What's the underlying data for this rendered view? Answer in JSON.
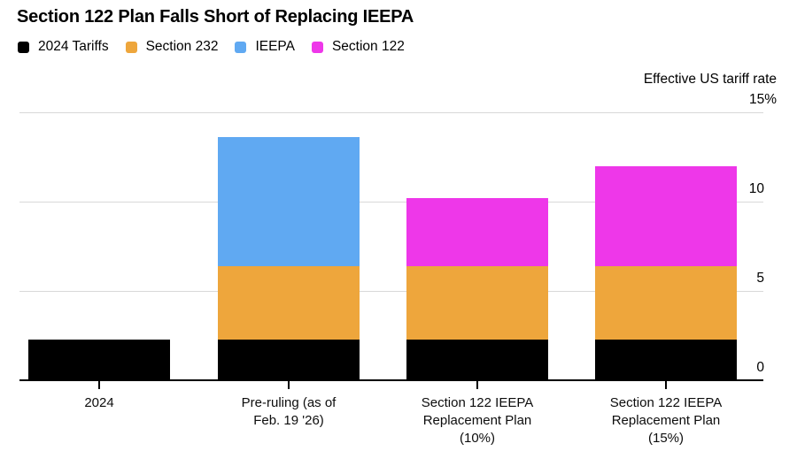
{
  "title": "Section 122 Plan Falls Short of Replacing IEEPA",
  "axis_title": "Effective US tariff rate",
  "legend": [
    {
      "label": "2024 Tariffs",
      "color": "#000000",
      "icon": "black-square-swatch-icon"
    },
    {
      "label": "Section 232",
      "color": "#EEA63C",
      "icon": "orange-square-swatch-icon"
    },
    {
      "label": "IEEPA",
      "color": "#60A9F2",
      "icon": "blue-square-swatch-icon"
    },
    {
      "label": "Section 122",
      "color": "#EE37E9",
      "icon": "magenta-square-swatch-icon"
    }
  ],
  "chart_data": {
    "type": "bar",
    "stacked": true,
    "title": "Section 122 Plan Falls Short of Replacing IEEPA",
    "ylabel": "Effective US tariff rate",
    "xlabel": "",
    "ylim": [
      0,
      15
    ],
    "yticks": [
      {
        "value": 0,
        "label": "0"
      },
      {
        "value": 5,
        "label": "5"
      },
      {
        "value": 10,
        "label": "10"
      },
      {
        "value": 15,
        "label": "15%"
      }
    ],
    "grid": "horizontal",
    "legend_position": "top-left",
    "categories": [
      "2024",
      "Pre-ruling (as of\nFeb. 19 '26)",
      "Section 122 IEEPA\nReplacement Plan\n(10%)",
      "Section 122 IEEPA\nReplacement Plan\n(15%)"
    ],
    "series": [
      {
        "name": "2024 Tariffs",
        "color": "#000000",
        "values": [
          2.3,
          2.3,
          2.3,
          2.3
        ]
      },
      {
        "name": "Section 232",
        "color": "#EEA63C",
        "values": [
          0,
          4.1,
          4.1,
          4.1
        ]
      },
      {
        "name": "IEEPA",
        "color": "#60A9F2",
        "values": [
          0,
          7.2,
          0,
          0
        ]
      },
      {
        "name": "Section 122",
        "color": "#EE37E9",
        "values": [
          0,
          0,
          3.8,
          5.6
        ]
      }
    ],
    "stack_totals_estimated": [
      2.3,
      13.6,
      10.2,
      12.0
    ]
  },
  "colors": {
    "background": "#ffffff",
    "grid": "#d8d8d8",
    "axis": "#000000",
    "text": "#000000"
  }
}
